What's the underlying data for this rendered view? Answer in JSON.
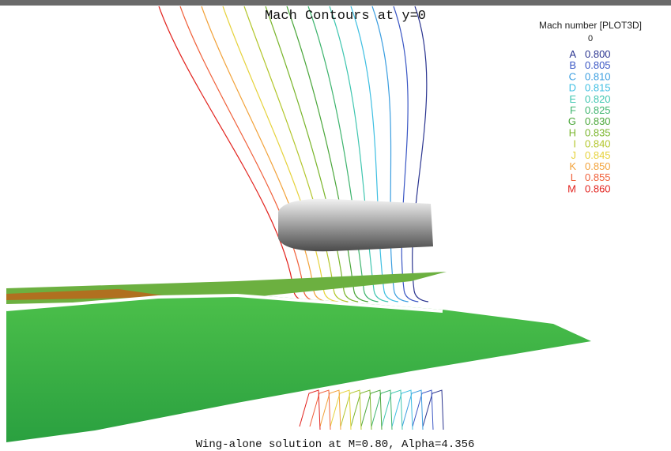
{
  "title": "Mach Contours at y=0",
  "legend": {
    "title": "Mach number [PLOT3D]",
    "subtitle": "0",
    "entries": [
      {
        "letter": "A",
        "value": "0.800",
        "color": "#2b3590"
      },
      {
        "letter": "B",
        "value": "0.805",
        "color": "#3a56c4"
      },
      {
        "letter": "C",
        "value": "0.810",
        "color": "#3b9ee0"
      },
      {
        "letter": "D",
        "value": "0.815",
        "color": "#3fbfe2"
      },
      {
        "letter": "E",
        "value": "0.820",
        "color": "#3fc6b0"
      },
      {
        "letter": "F",
        "value": "0.825",
        "color": "#3eb46e"
      },
      {
        "letter": "G",
        "value": "0.830",
        "color": "#4aa63a"
      },
      {
        "letter": "H",
        "value": "0.835",
        "color": "#7ab52c"
      },
      {
        "letter": "I",
        "value": "0.840",
        "color": "#b3c62c"
      },
      {
        "letter": "J",
        "value": "0.845",
        "color": "#e6d23c"
      },
      {
        "letter": "K",
        "value": "0.850",
        "color": "#f2a23a"
      },
      {
        "letter": "L",
        "value": "0.855",
        "color": "#f0603a"
      },
      {
        "letter": "M",
        "value": "0.860",
        "color": "#e2231e"
      }
    ]
  },
  "footer": "Wing-alone solution at M=0.80, Alpha=4.356"
}
